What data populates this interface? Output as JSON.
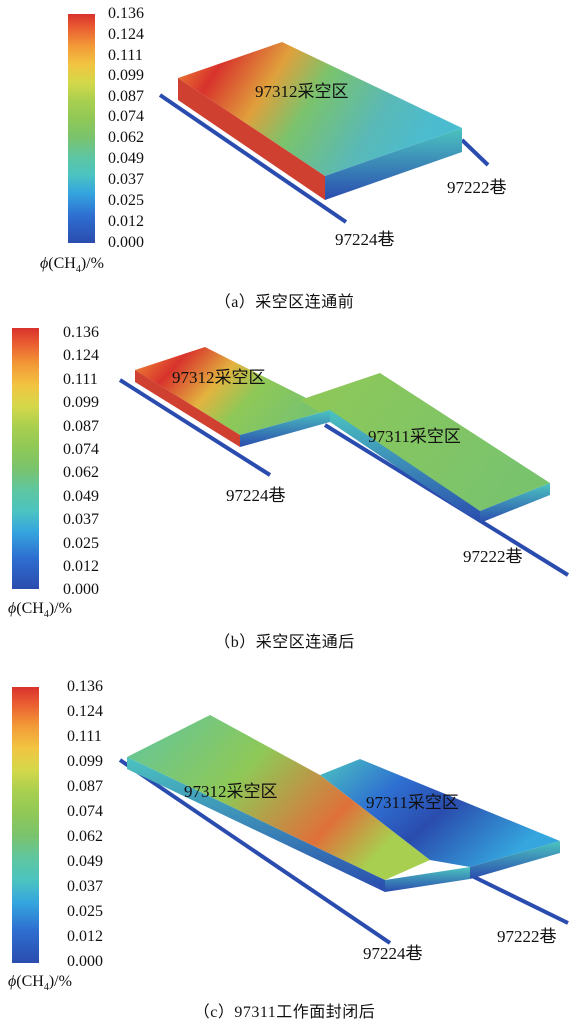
{
  "colorbar": {
    "ticks": [
      "0.136",
      "0.124",
      "0.111",
      "0.099",
      "0.087",
      "0.074",
      "0.062",
      "0.049",
      "0.037",
      "0.025",
      "0.012",
      "0.000"
    ],
    "unit": {
      "symbol": "ϕ",
      "open": "(CH",
      "subscript": "4",
      "close": ")/%"
    },
    "colors": [
      "#2a4cae",
      "#35a6de",
      "#7ac36d",
      "#d4d84a",
      "#f29a37",
      "#d8322c"
    ]
  },
  "panels": [
    {
      "caption": "（a）采空区连通前",
      "labels": {
        "goaf_97312": "97312采空区",
        "roadway_97222": "97222巷",
        "roadway_97224": "97224巷"
      }
    },
    {
      "caption": "（b）采空区连通后",
      "labels": {
        "goaf_97312": "97312采空区",
        "goaf_97311": "97311采空区",
        "roadway_97222": "97222巷",
        "roadway_97224": "97224巷"
      }
    },
    {
      "caption": "（c）97311工作面封闭后",
      "labels": {
        "goaf_97312": "97312采空区",
        "goaf_97311": "97311采空区",
        "roadway_97222": "97222巷",
        "roadway_97224": "97224巷"
      }
    }
  ]
}
